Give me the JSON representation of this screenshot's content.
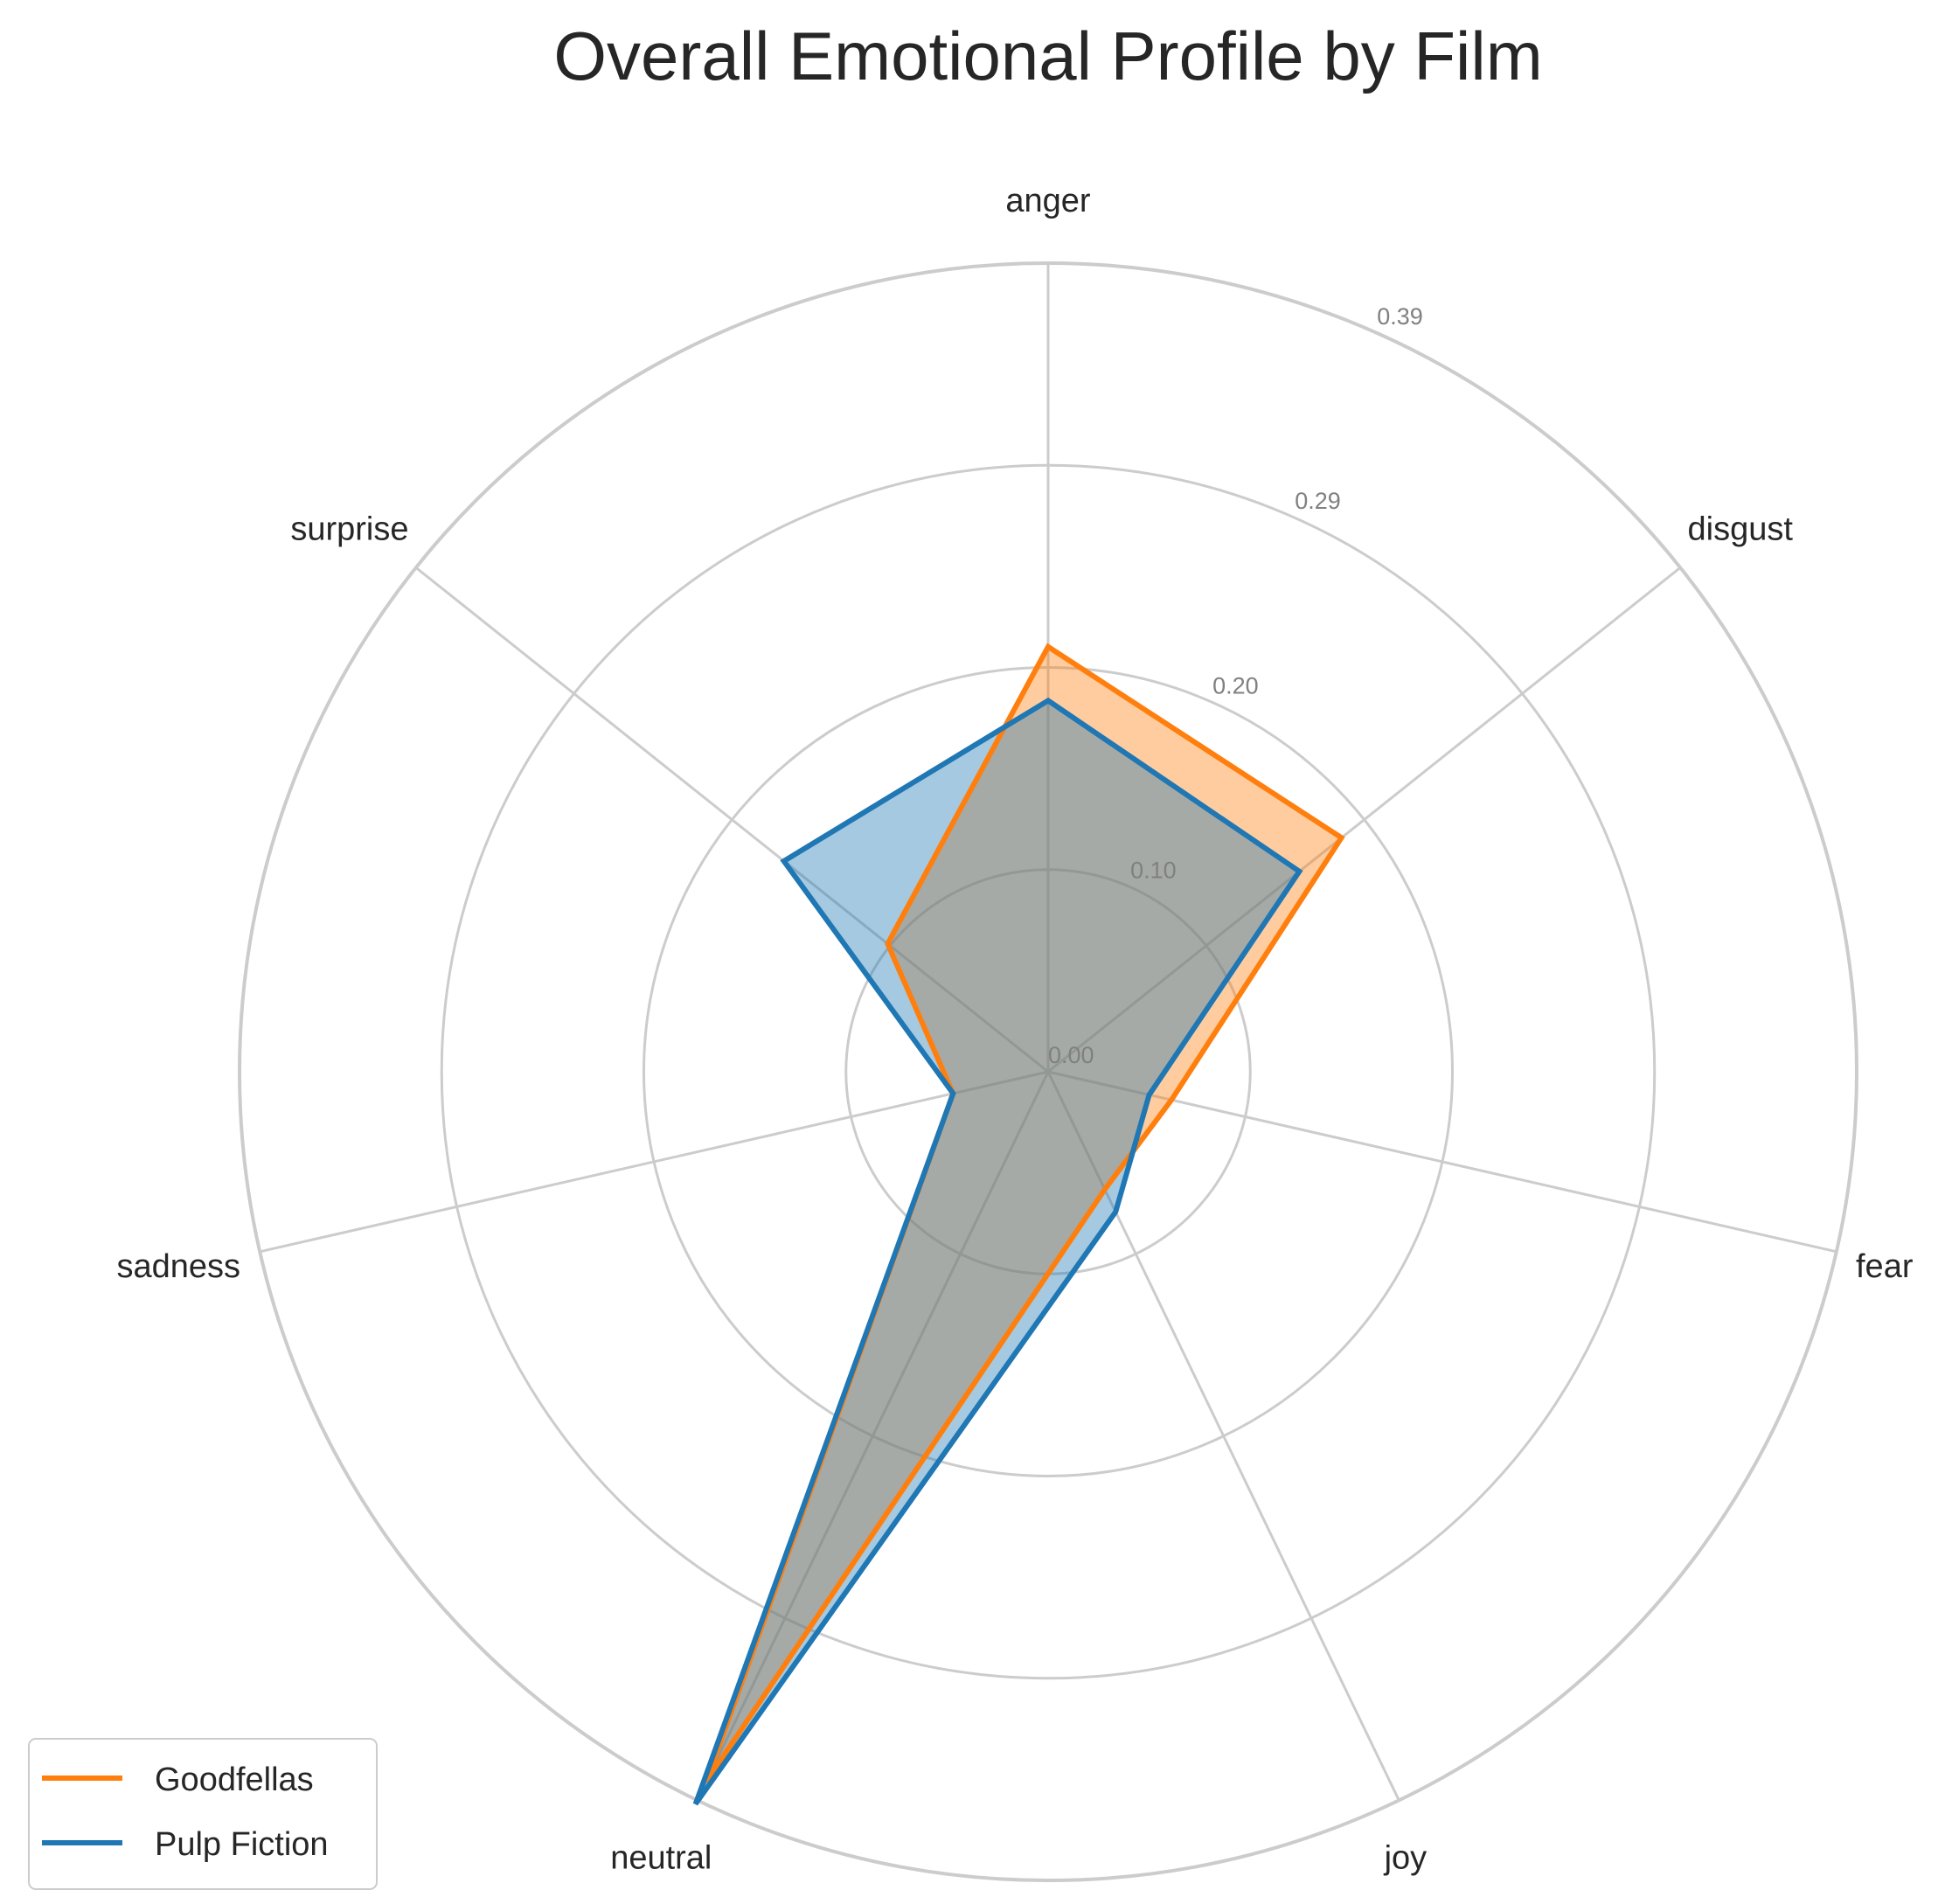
{
  "chart_data": {
    "type": "radar",
    "title": "Overall Emotional Profile by Film",
    "categories": [
      "anger",
      "disgust",
      "fear",
      "joy",
      "neutral",
      "sadness",
      "surprise"
    ],
    "radial_ticks": [
      "0.00",
      "0.10",
      "0.20",
      "0.29",
      "0.39"
    ],
    "radial_tick_values": [
      0.0,
      0.0975,
      0.195,
      0.2925,
      0.39
    ],
    "rlim": [
      0,
      0.39
    ],
    "grid": true,
    "legend_position": "lower-left",
    "series": [
      {
        "name": "Goodfellas",
        "color": "#ff7f0e",
        "values": [
          0.205,
          0.181,
          0.061,
          0.063,
          0.38,
          0.047,
          0.099
        ]
      },
      {
        "name": "Pulp Fiction",
        "color": "#1f77b4",
        "values": [
          0.179,
          0.155,
          0.05,
          0.075,
          0.392,
          0.047,
          0.163
        ]
      }
    ]
  }
}
